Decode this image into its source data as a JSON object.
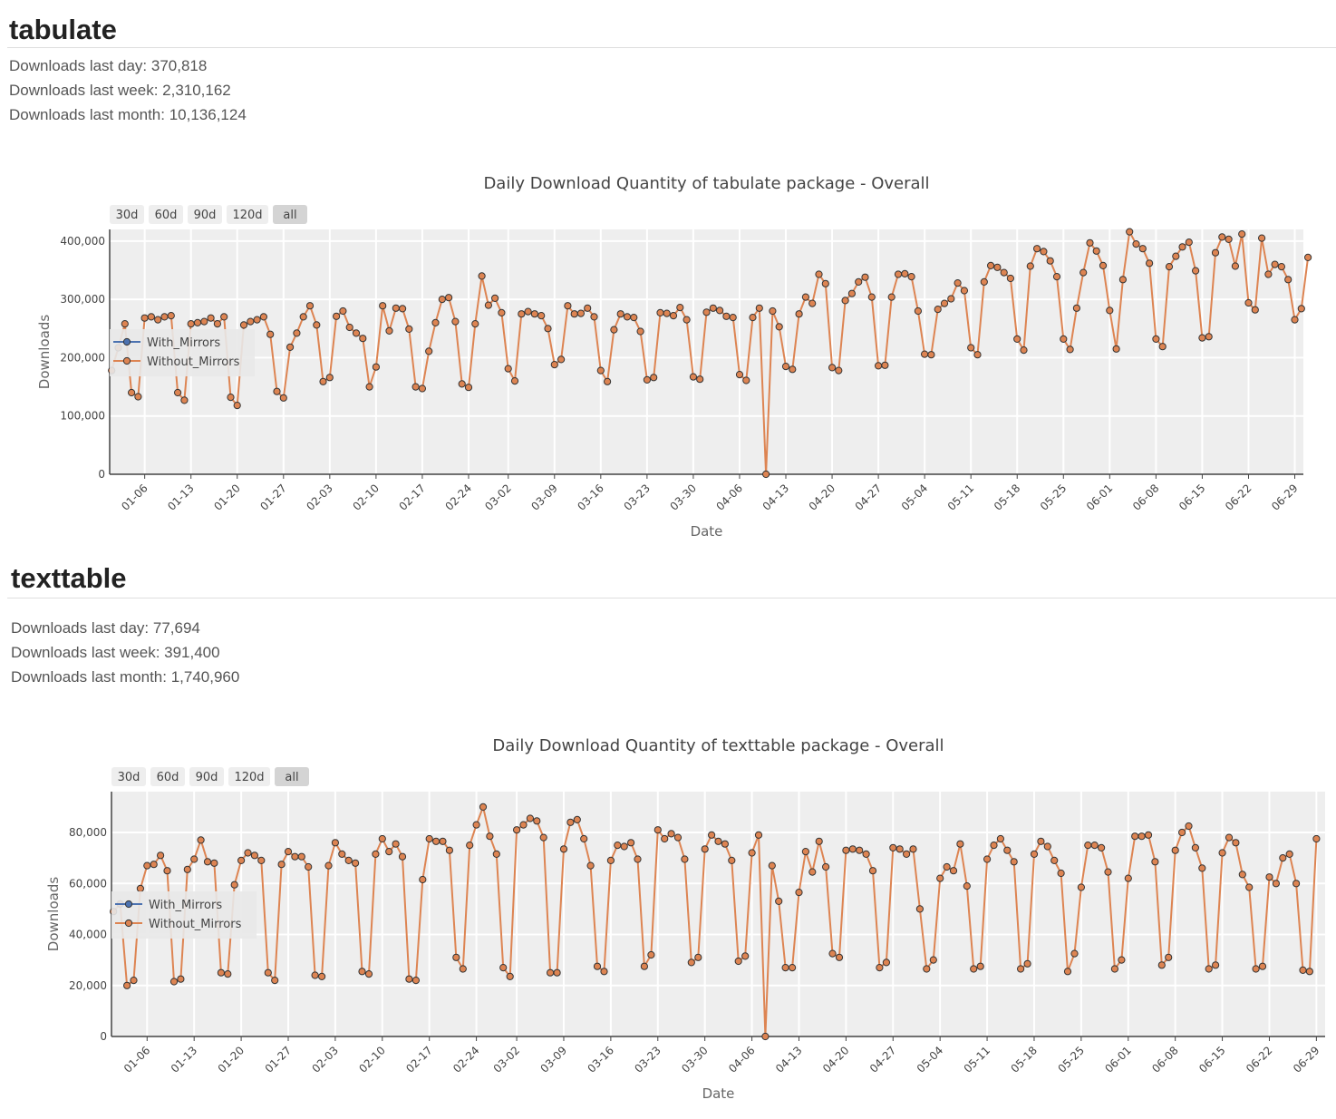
{
  "packages": [
    {
      "name": "tabulate",
      "stats": {
        "last_day": "Downloads last day: 370,818",
        "last_week": "Downloads last week: 2,310,162",
        "last_month": "Downloads last month: 10,136,124"
      },
      "chart_data": {
        "type": "line",
        "title": "Daily Download Quantity of tabulate package - Overall",
        "xlabel": "Date",
        "ylabel": "Downloads",
        "range_buttons": [
          "30d",
          "60d",
          "90d",
          "120d",
          "all"
        ],
        "active_button": "all",
        "x_start": "01-01",
        "xlim": [
          "01-01",
          "06-30"
        ],
        "ylim": [
          0,
          420000
        ],
        "yticks": [
          0,
          100000,
          200000,
          300000,
          400000
        ],
        "ytick_labels": [
          "0",
          "100,000",
          "200,000",
          "300,000",
          "400,000"
        ],
        "xticks": [
          "01-06",
          "01-13",
          "01-20",
          "01-27",
          "02-03",
          "02-10",
          "02-17",
          "02-24",
          "03-02",
          "03-09",
          "03-16",
          "03-23",
          "03-30",
          "04-06",
          "04-13",
          "04-20",
          "04-27",
          "05-04",
          "05-11",
          "05-18",
          "05-25",
          "06-01",
          "06-08",
          "06-15",
          "06-22",
          "06-29"
        ],
        "legend": {
          "position": "left-middle",
          "entries": [
            "With_Mirrors",
            "Without_Mirrors"
          ]
        },
        "grid": true,
        "series": [
          {
            "name": "With_Mirrors",
            "color": "#4c72b0",
            "values": []
          },
          {
            "name": "Without_Mirrors",
            "color": "#dd8452",
            "values": [
              178000,
              217000,
              258000,
              140000,
              133000,
              268000,
              270000,
              265000,
              270000,
              272000,
              140000,
              127000,
              258000,
              260000,
              262000,
              268000,
              258000,
              270000,
              132000,
              118000,
              256000,
              262000,
              265000,
              270000,
              240000,
              142000,
              131000,
              218000,
              242000,
              270000,
              289000,
              256000,
              159000,
              166000,
              271000,
              280000,
              252000,
              242000,
              233000,
              150000,
              184000,
              289000,
              246000,
              285000,
              284000,
              249000,
              150000,
              147000,
              211000,
              260000,
              300000,
              303000,
              262000,
              155000,
              149000,
              258000,
              340000,
              290000,
              302000,
              277000,
              181000,
              160000,
              275000,
              279000,
              275000,
              272000,
              250000,
              188000,
              197000,
              289000,
              275000,
              276000,
              285000,
              270000,
              178000,
              159000,
              248000,
              275000,
              270000,
              269000,
              245000,
              162000,
              166000,
              277000,
              276000,
              272000,
              286000,
              265000,
              167000,
              163000,
              278000,
              285000,
              281000,
              271000,
              269000,
              171000,
              161000,
              269000,
              285000,
              0,
              280000,
              253000,
              185000,
              180000,
              275000,
              304000,
              293000,
              343000,
              327000,
              183000,
              178000,
              298000,
              310000,
              330000,
              338000,
              304000,
              186000,
              187000,
              304000,
              343000,
              344000,
              339000,
              280000,
              206000,
              205000,
              283000,
              293000,
              301000,
              328000,
              315000,
              217000,
              205000,
              330000,
              358000,
              355000,
              346000,
              336000,
              232000,
              213000,
              357000,
              387000,
              382000,
              366000,
              339000,
              232000,
              214000,
              285000,
              346000,
              397000,
              383000,
              358000,
              281000,
              215000,
              334000,
              416000,
              395000,
              387000,
              362000,
              232000,
              219000,
              356000,
              374000,
              390000,
              398000,
              349000,
              234000,
              236000,
              380000,
              407000,
              403000,
              357000,
              412000,
              294000,
              282000,
              405000,
              343000,
              360000,
              356000,
              334000,
              265000,
              284000,
              372000
            ]
          }
        ]
      }
    },
    {
      "name": "texttable",
      "stats": {
        "last_day": "Downloads last day: 77,694",
        "last_week": "Downloads last week: 391,400",
        "last_month": "Downloads last month: 1,740,960"
      },
      "chart_data": {
        "type": "line",
        "title": "Daily Download Quantity of texttable package - Overall",
        "xlabel": "Date",
        "ylabel": "Downloads",
        "range_buttons": [
          "30d",
          "60d",
          "90d",
          "120d",
          "all"
        ],
        "active_button": "all",
        "x_start": "01-01",
        "xlim": [
          "01-01",
          "06-30"
        ],
        "ylim": [
          0,
          96000
        ],
        "yticks": [
          0,
          20000,
          40000,
          60000,
          80000
        ],
        "ytick_labels": [
          "0",
          "20,000",
          "40,000",
          "60,000",
          "80,000"
        ],
        "xticks": [
          "01-06",
          "01-13",
          "01-20",
          "01-27",
          "02-03",
          "02-10",
          "02-17",
          "02-24",
          "03-02",
          "03-09",
          "03-16",
          "03-23",
          "03-30",
          "04-06",
          "04-13",
          "04-20",
          "04-27",
          "05-04",
          "05-11",
          "05-18",
          "05-25",
          "06-01",
          "06-08",
          "06-15",
          "06-22",
          "06-29"
        ],
        "legend": {
          "position": "left-middle",
          "entries": [
            "With_Mirrors",
            "Without_Mirrors"
          ]
        },
        "grid": true,
        "series": [
          {
            "name": "With_Mirrors",
            "color": "#4c72b0",
            "values": []
          },
          {
            "name": "Without_Mirrors",
            "color": "#dd8452",
            "values": [
              49000,
              52000,
              20000,
              22000,
              58000,
              67000,
              67500,
              71000,
              65000,
              21500,
              22500,
              65500,
              69500,
              77000,
              68500,
              68000,
              25000,
              24500,
              59500,
              69000,
              72000,
              71000,
              69000,
              25000,
              22000,
              67500,
              72500,
              70500,
              70500,
              66500,
              24000,
              23500,
              67000,
              76000,
              71500,
              69000,
              68000,
              25500,
              24500,
              71500,
              77500,
              72500,
              75500,
              70500,
              22500,
              22000,
              61500,
              77500,
              76500,
              76500,
              73000,
              31000,
              26500,
              75000,
              83000,
              90000,
              78500,
              71500,
              27000,
              23500,
              81000,
              83000,
              85500,
              84500,
              78000,
              25000,
              25000,
              73500,
              84000,
              85000,
              77500,
              67000,
              27500,
              25500,
              69000,
              75000,
              74500,
              76000,
              69500,
              27500,
              32000,
              81000,
              77500,
              79500,
              78000,
              69500,
              29000,
              31000,
              73500,
              79000,
              76500,
              75500,
              69000,
              29500,
              31500,
              72000,
              79000,
              0,
              67000,
              53000,
              27000,
              27000,
              56500,
              72500,
              64500,
              76500,
              66500,
              32500,
              31000,
              73000,
              73500,
              73000,
              71500,
              65000,
              27000,
              29000,
              74000,
              73500,
              71500,
              73500,
              50000,
              26500,
              30000,
              62000,
              66500,
              65000,
              75500,
              59000,
              26500,
              27500,
              69500,
              75000,
              77500,
              73000,
              68500,
              26500,
              28500,
              71500,
              76500,
              74500,
              69000,
              64000,
              25500,
              32500,
              58500,
              75000,
              75000,
              74000,
              64500,
              26500,
              30000,
              62000,
              78500,
              78500,
              79000,
              68500,
              28000,
              31000,
              73000,
              80000,
              82500,
              74000,
              66000,
              26500,
              28000,
              72000,
              78000,
              76000,
              63500,
              58500,
              26500,
              27500,
              62500,
              60000,
              70000,
              71500,
              60000,
              26000,
              25500,
              77500
            ]
          }
        ]
      }
    }
  ]
}
